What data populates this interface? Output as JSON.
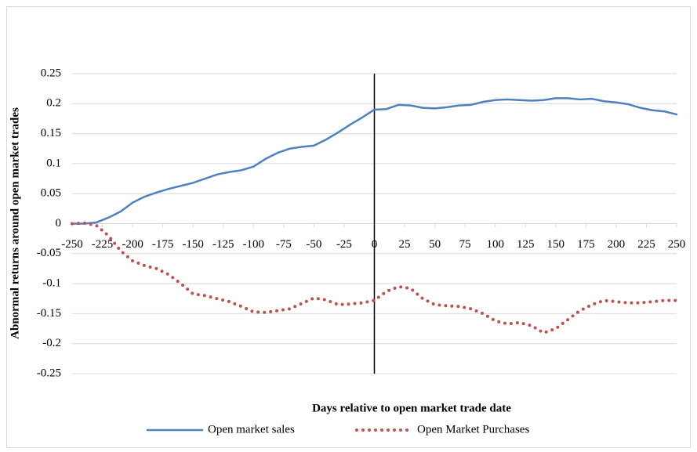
{
  "chart_data": {
    "type": "line",
    "x_label": "Days relative to open market trade date",
    "y_label": "Abnormal returns around open market trades",
    "x": [
      -250,
      -240,
      -230,
      -220,
      -210,
      -200,
      -190,
      -180,
      -170,
      -160,
      -150,
      -140,
      -130,
      -120,
      -110,
      -100,
      -90,
      -80,
      -70,
      -60,
      -50,
      -40,
      -30,
      -20,
      -10,
      0,
      10,
      20,
      30,
      40,
      50,
      60,
      70,
      80,
      90,
      100,
      110,
      120,
      130,
      140,
      150,
      160,
      170,
      180,
      190,
      200,
      210,
      220,
      230,
      240,
      250
    ],
    "series": [
      {
        "name": "Open market sales",
        "color": "#4f81bd",
        "style": "solid",
        "values": [
          0,
          0,
          0.002,
          0.01,
          0.02,
          0.035,
          0.045,
          0.052,
          0.058,
          0.063,
          0.068,
          0.075,
          0.082,
          0.086,
          0.089,
          0.095,
          0.108,
          0.118,
          0.125,
          0.128,
          0.13,
          0.14,
          0.152,
          0.165,
          0.177,
          0.19,
          0.191,
          0.198,
          0.197,
          0.193,
          0.192,
          0.194,
          0.197,
          0.198,
          0.203,
          0.206,
          0.207,
          0.206,
          0.205,
          0.206,
          0.209,
          0.209,
          0.207,
          0.208,
          0.204,
          0.202,
          0.199,
          0.193,
          0.189,
          0.187,
          0.182
        ]
      },
      {
        "name": "Open Market Purchases",
        "color": "#c0504d",
        "style": "dotted",
        "values": [
          0,
          0.001,
          -0.003,
          -0.02,
          -0.045,
          -0.062,
          -0.07,
          -0.075,
          -0.085,
          -0.1,
          -0.117,
          -0.12,
          -0.125,
          -0.13,
          -0.138,
          -0.147,
          -0.148,
          -0.145,
          -0.142,
          -0.133,
          -0.124,
          -0.127,
          -0.135,
          -0.134,
          -0.132,
          -0.128,
          -0.113,
          -0.105,
          -0.108,
          -0.125,
          -0.135,
          -0.137,
          -0.138,
          -0.142,
          -0.15,
          -0.162,
          -0.167,
          -0.165,
          -0.17,
          -0.182,
          -0.175,
          -0.16,
          -0.145,
          -0.135,
          -0.128,
          -0.13,
          -0.132,
          -0.132,
          -0.13,
          -0.128,
          -0.128
        ]
      }
    ],
    "xlim": [
      -250,
      250
    ],
    "xticks": [
      -250,
      -225,
      -200,
      -175,
      -150,
      -125,
      -100,
      -75,
      -50,
      -25,
      0,
      25,
      50,
      75,
      100,
      125,
      150,
      175,
      200,
      225,
      250
    ],
    "ylim": [
      -0.25,
      0.25
    ],
    "yticks": [
      0.25,
      0.2,
      0.15,
      0.1,
      0.05,
      0,
      -0.05,
      -0.1,
      -0.15,
      -0.2,
      -0.25
    ],
    "vline": 0,
    "grid": true,
    "legend": "bottom"
  }
}
